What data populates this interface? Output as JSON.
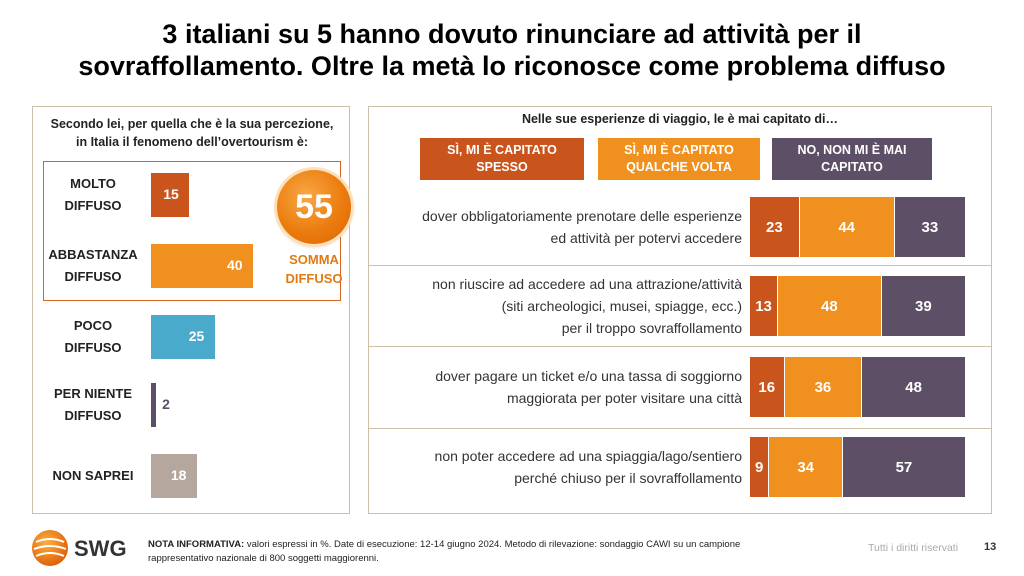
{
  "title": {
    "line1": "3 italiani su 5 hanno dovuto rinunciare ad attività per il",
    "line2": "sovraffollamento. Oltre la metà lo riconosce come problema diffuso"
  },
  "colors": {
    "spesso": "#c9541c",
    "qualche": "#f0901e",
    "mai": "#5d5066",
    "molto": "#c9541c",
    "abbastanza": "#f0901e",
    "poco": "#4aaacc",
    "per_niente": "#5d5066",
    "non_saprei": "#b5a79e"
  },
  "left": {
    "question_line1": "Secondo lei, per quella che è la sua percezione,",
    "question_line2": "in Italia il fenomeno dell’overtourism è:",
    "somma_value": "55",
    "somma_line1": "SOMMA",
    "somma_line2": "DIFFUSO"
  },
  "right": {
    "question": "Nelle sue esperienze di viaggio, le è mai capitato di…"
  },
  "footer": {
    "logo_text": "SWG",
    "note_label": "NOTA INFORMATIVA:",
    "note_line1": " valori espressi in %. Date di esecuzione: 12-14 giugno 2024. Metodo di rilevazione: sondaggio CAWI su un campione",
    "note_line2": "rappresentativo nazionale di 800 soggetti maggiorenni.",
    "rights": "Tutti i diritti riservati",
    "page": "13"
  },
  "chart_data": [
    {
      "type": "bar",
      "orientation": "horizontal",
      "title": "Secondo lei, per quella che è la sua percezione, in Italia il fenomeno dell’overtourism è:",
      "categories": [
        [
          "MOLTO",
          "DIFFUSO"
        ],
        [
          "ABBASTANZA",
          "DIFFUSO"
        ],
        [
          "POCO",
          "DIFFUSO"
        ],
        [
          "PER NIENTE",
          "DIFFUSO"
        ],
        [
          "NON SAPREI"
        ]
      ],
      "values": [
        15,
        40,
        25,
        2,
        18
      ],
      "xlim": [
        0,
        55
      ]
    },
    {
      "type": "bar",
      "orientation": "horizontal",
      "stacked": true,
      "title": "Nelle sue esperienze di viaggio, le è mai capitato di…",
      "categories": [
        [
          "dover obbligatoriamente prenotare delle esperienze",
          "ed attività per potervi accedere"
        ],
        [
          "non riuscire ad accedere ad una attrazione/attività",
          "(siti archeologici, musei, spiagge, ecc.)",
          "per il troppo sovraffollamento"
        ],
        [
          "dover pagare un ticket e/o una tassa di soggiorno",
          "maggiorata per poter visitare una città"
        ],
        [
          "non poter accedere ad una spiaggia/lago/sentiero",
          "perché chiuso per il sovraffollamento"
        ]
      ],
      "series": [
        {
          "name": [
            "SÌ, MI È CAPITATO",
            "SPESSO"
          ],
          "values": [
            23,
            13,
            16,
            9
          ]
        },
        {
          "name": [
            "SÌ, MI È CAPITATO",
            "QUALCHE VOLTA"
          ],
          "values": [
            44,
            48,
            36,
            34
          ]
        },
        {
          "name": [
            "NO, NON MI È MAI",
            "CAPITATO"
          ],
          "values": [
            33,
            39,
            48,
            57
          ]
        }
      ],
      "xlim": [
        0,
        100
      ]
    }
  ]
}
